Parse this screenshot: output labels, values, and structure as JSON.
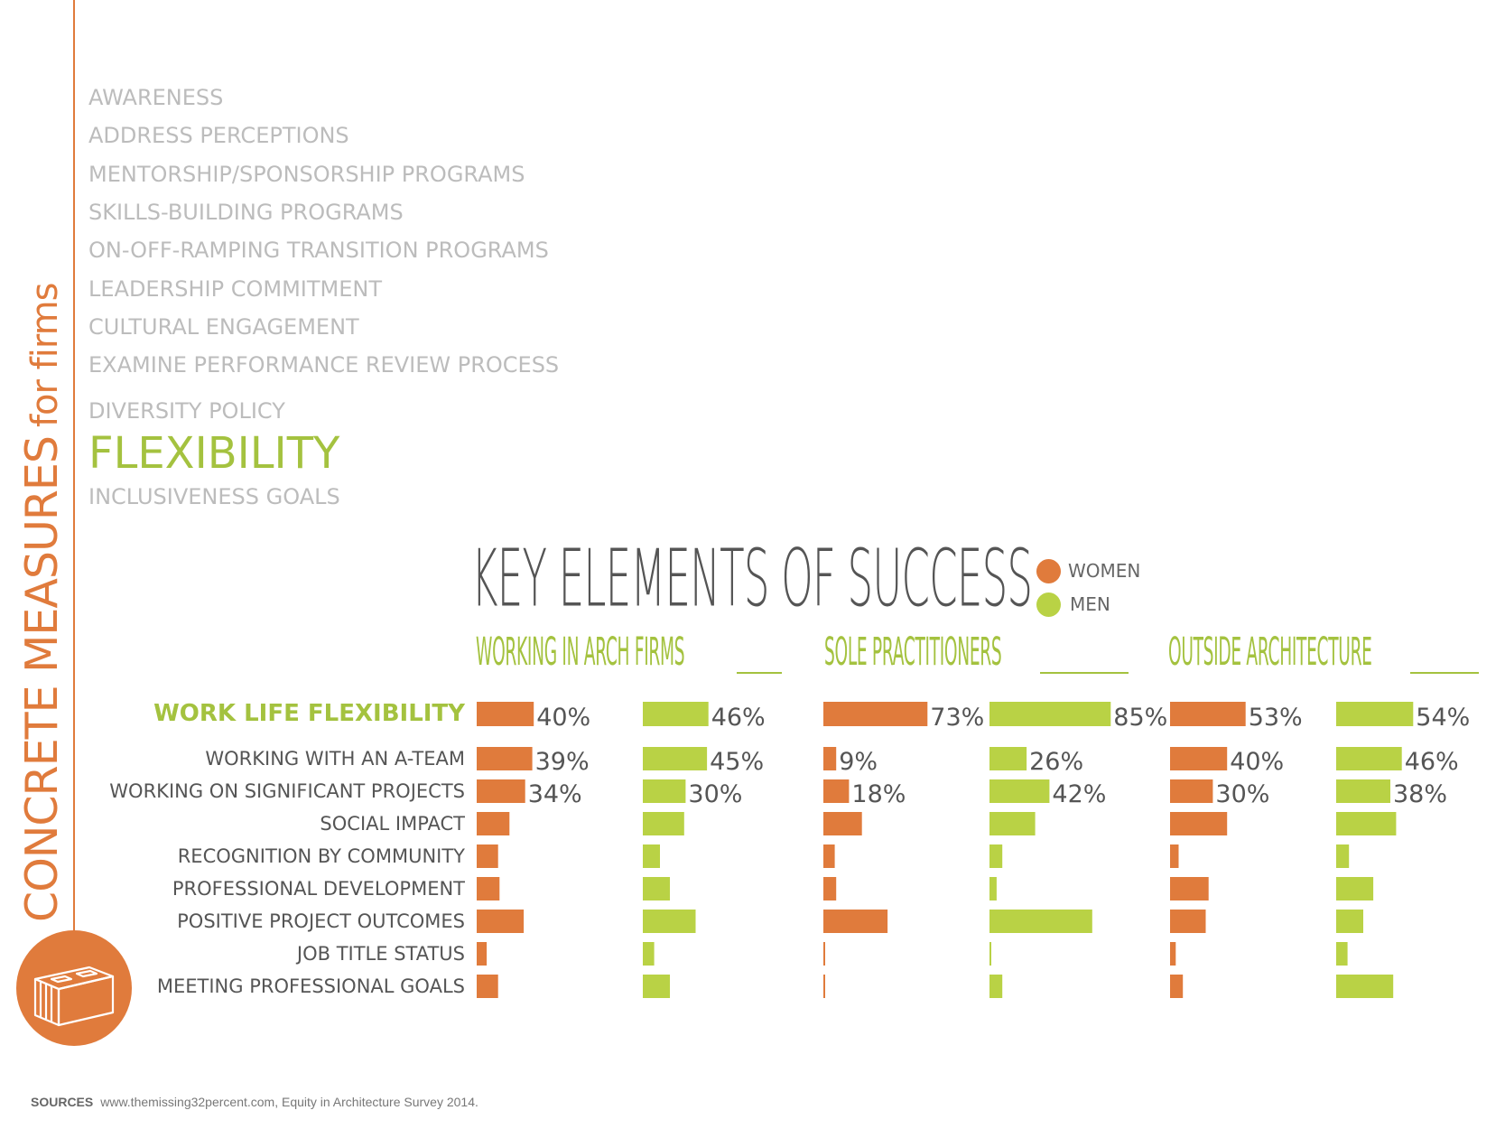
{
  "side_title": {
    "main": "CONCRETE MEASURES",
    "suffix": "for firms"
  },
  "measures": [
    "AWARENESS",
    "ADDRESS PERCEPTIONS",
    "MENTORSHIP/SPONSORSHIP PROGRAMS",
    "SKILLS-BUILDING PROGRAMS",
    "ON-OFF-RAMPING TRANSITION PROGRAMS",
    "LEADERSHIP COMMITMENT",
    "CULTURAL ENGAGEMENT",
    "EXAMINE PERFORMANCE REVIEW PROCESS",
    "DIVERSITY POLICY",
    "FLEXIBILITY",
    "INCLUSIVENESS GOALS"
  ],
  "highlight_measure": "FLEXIBILITY",
  "colors": {
    "women": "#e07b3c",
    "men": "#b9d245",
    "accent_green": "#a4c23f",
    "label": "#555555",
    "faint": "#bcbcbc"
  },
  "legend": {
    "women": "WOMEN",
    "men": "MEN"
  },
  "groups": {
    "arch": "WORKING IN ARCH FIRMS",
    "sole": "SOLE PRACTITIONERS",
    "outside": "OUTSIDE ARCHITECTURE"
  },
  "sources": {
    "label": "SOURCES",
    "text": "www.themissing32percent.com, Equity in Architecture Survey 2014."
  },
  "chart_data": {
    "type": "bar",
    "title": "KEY ELEMENTS OF SUCCESS",
    "categories": [
      "WORK LIFE FLEXIBILITY",
      "WORKING WITH AN A-TEAM",
      "WORKING ON SIGNIFICANT PROJECTS",
      "SOCIAL IMPACT",
      "RECOGNITION BY COMMUNITY",
      "PROFESSIONAL DEVELOPMENT",
      "POSITIVE PROJECT OUTCOMES",
      "JOB TITLE STATUS",
      "MEETING PROFESSIONAL GOALS"
    ],
    "highlight_category": "WORK LIFE FLEXIBILITY",
    "series": [
      {
        "name": "WOMEN",
        "group": "WORKING IN ARCH FIRMS",
        "values": [
          40,
          39,
          34,
          23,
          15,
          16,
          33,
          7,
          15
        ],
        "labels": [
          "40%",
          "39%",
          "34%",
          "",
          "",
          "",
          "",
          "",
          ""
        ]
      },
      {
        "name": "MEN",
        "group": "WORKING IN ARCH FIRMS",
        "values": [
          46,
          45,
          30,
          29,
          12,
          19,
          37,
          8,
          19
        ],
        "labels": [
          "46%",
          "45%",
          "30%",
          "",
          "",
          "",
          "",
          "",
          ""
        ]
      },
      {
        "name": "WOMEN",
        "group": "SOLE PRACTITIONERS",
        "values": [
          73,
          9,
          18,
          27,
          8,
          9,
          45,
          1,
          1
        ],
        "labels": [
          "73%",
          "9%",
          "18%",
          "",
          "",
          "",
          "",
          "",
          ""
        ]
      },
      {
        "name": "MEN",
        "group": "SOLE PRACTITIONERS",
        "values": [
          85,
          26,
          42,
          32,
          9,
          5,
          72,
          1,
          9
        ],
        "labels": [
          "85%",
          "26%",
          "42%",
          "",
          "",
          "",
          "",
          "",
          ""
        ]
      },
      {
        "name": "WOMEN",
        "group": "OUTSIDE ARCHITECTURE",
        "values": [
          53,
          40,
          30,
          40,
          6,
          27,
          25,
          4,
          9
        ],
        "labels": [
          "53%",
          "40%",
          "30%",
          "",
          "",
          "",
          "",
          "",
          ""
        ]
      },
      {
        "name": "MEN",
        "group": "OUTSIDE ARCHITECTURE",
        "values": [
          54,
          46,
          38,
          42,
          9,
          26,
          19,
          8,
          40
        ],
        "labels": [
          "54%",
          "46%",
          "38%",
          "",
          "",
          "",
          "",
          "",
          ""
        ]
      }
    ]
  }
}
